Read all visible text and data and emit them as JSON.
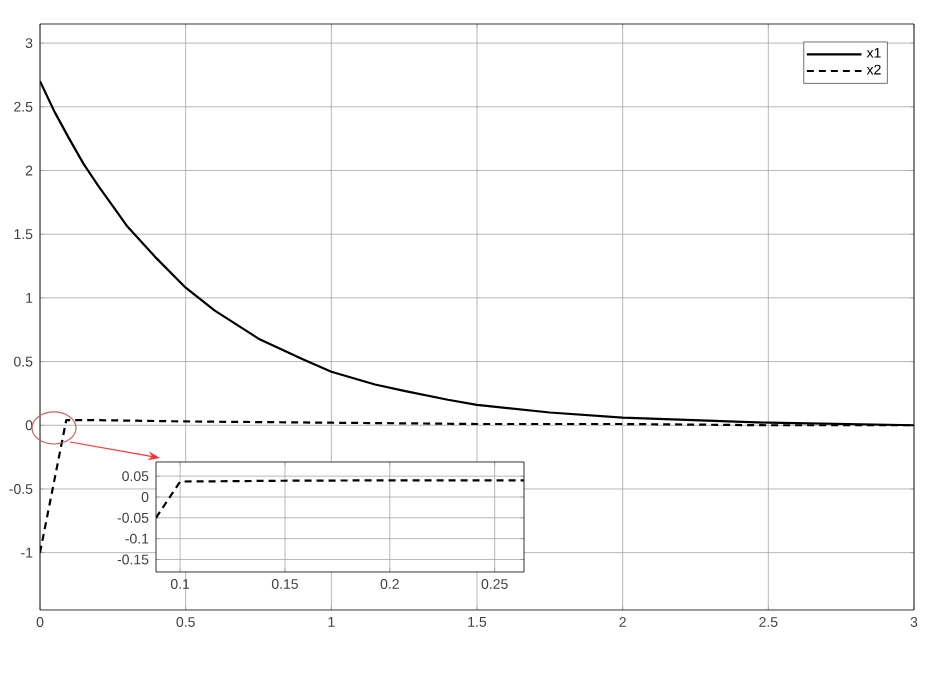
{
  "chart_data": [
    {
      "type": "line",
      "xlim": [
        0,
        3
      ],
      "ylim": [
        -1.45,
        3.15
      ],
      "xticks": [
        0,
        0.5,
        1,
        1.5,
        2,
        2.5,
        3
      ],
      "yticks": [
        -1,
        -0.5,
        0,
        0.5,
        1,
        1.5,
        2,
        2.5,
        3
      ],
      "grid": true,
      "legend": "top right",
      "series": [
        {
          "name": "x1",
          "color": "#000000",
          "line_style": "solid",
          "x": [
            0,
            0.05,
            0.1,
            0.15,
            0.2,
            0.25,
            0.3,
            0.4,
            0.5,
            0.6,
            0.75,
            0.9,
            1,
            1.15,
            1.25,
            1.4,
            1.5,
            1.75,
            2,
            2.5,
            3
          ],
          "values": [
            2.7,
            2.46,
            2.25,
            2.05,
            1.88,
            1.72,
            1.56,
            1.31,
            1.08,
            0.9,
            0.68,
            0.52,
            0.42,
            0.32,
            0.27,
            0.2,
            0.16,
            0.1,
            0.06,
            0.02,
            0.0
          ]
        },
        {
          "name": "x2",
          "color": "#000000",
          "line_style": "dashed",
          "x": [
            0,
            0.09,
            0.2,
            0.5,
            1,
            1.5,
            2,
            2.5,
            3
          ],
          "values": [
            -1.0,
            0.04,
            0.04,
            0.03,
            0.02,
            0.01,
            0.01,
            0.0,
            0.0
          ]
        }
      ]
    },
    {
      "type": "line",
      "xlim": [
        0.0885,
        0.264
      ],
      "ylim": [
        -0.18,
        0.084
      ],
      "xticks": [
        0.1,
        0.15,
        0.2,
        0.25
      ],
      "yticks": [
        -0.15,
        -0.1,
        -0.05,
        0,
        0.05
      ],
      "grid": true,
      "legend": false,
      "series": [
        {
          "color": "#000000",
          "line_style": "dashed",
          "x": [
            0.0885,
            0.1,
            0.15,
            0.2,
            0.264
          ],
          "values": [
            -0.05,
            0.037,
            0.039,
            0.04,
            0.04
          ]
        }
      ]
    }
  ]
}
